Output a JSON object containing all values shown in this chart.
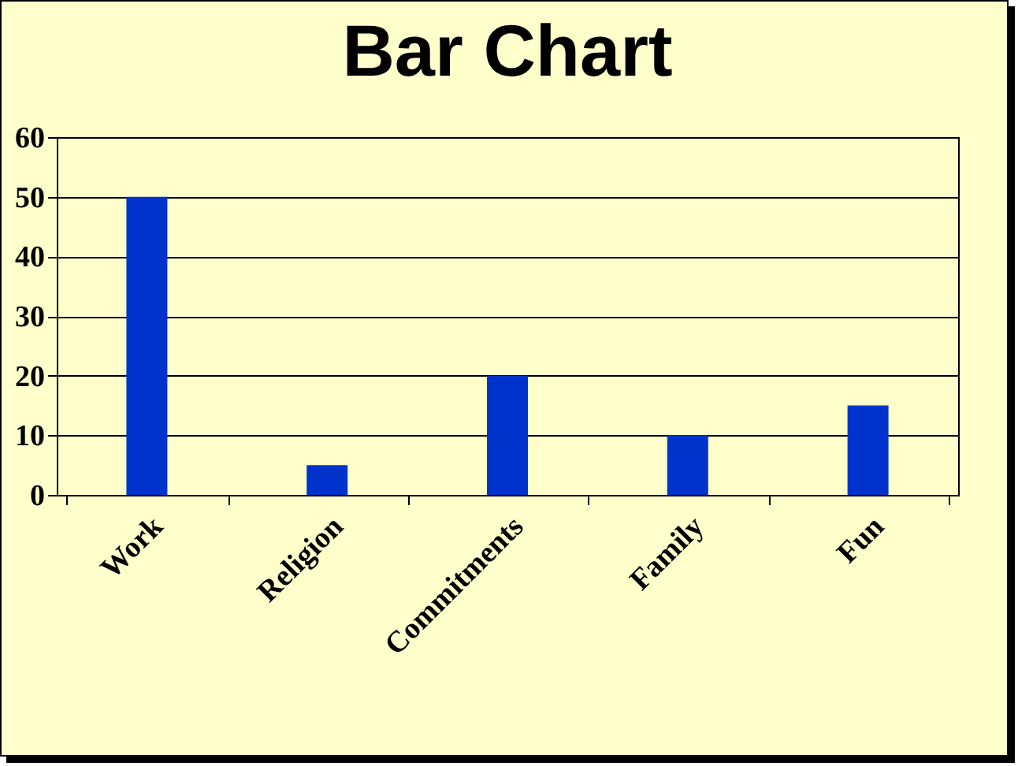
{
  "chart_data": {
    "type": "bar",
    "title": "Bar Chart",
    "categories": [
      "Work",
      "Religion",
      "Commitments",
      "Family",
      "Fun"
    ],
    "values": [
      50,
      5,
      20,
      10,
      15
    ],
    "color": "#0033cc",
    "ylim": [
      0,
      60
    ],
    "yticks": [
      0,
      10,
      20,
      30,
      40,
      50,
      60
    ],
    "grid": "y"
  }
}
